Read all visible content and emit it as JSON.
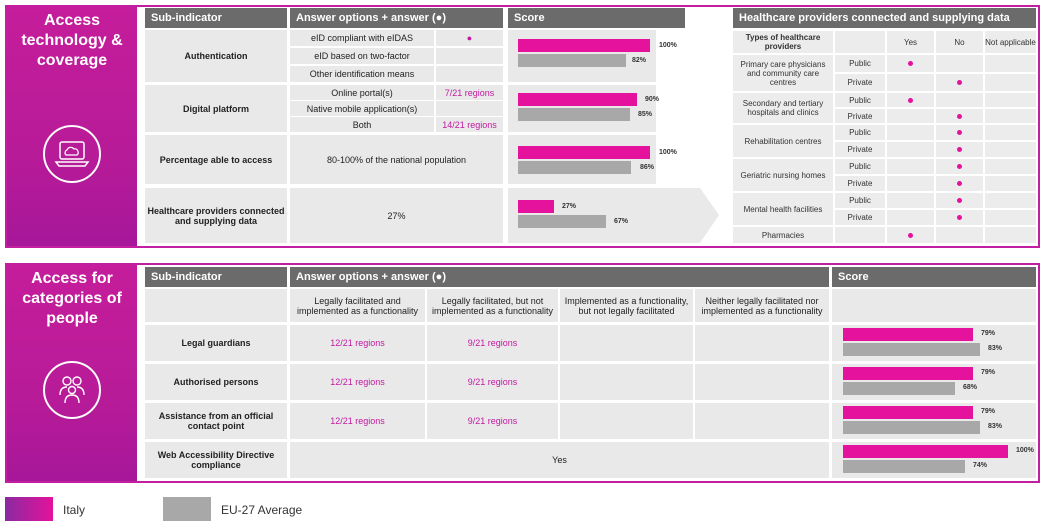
{
  "top": {
    "side_title": "Access technology & coverage",
    "icon": "cloud-laptop-icon",
    "headers": {
      "sub_indicator": "Sub-indicator",
      "answer": "Answer options + answer (●)",
      "score": "Score"
    },
    "rows": [
      {
        "label": "Authentication",
        "options": [
          "eID compliant with eIDAS",
          "eID based on two-factor",
          "Other identification means"
        ],
        "selected_mark": "●",
        "italy": "100%",
        "eu": "82%"
      },
      {
        "label": "Digital platform",
        "options": [
          "Online portal(s)",
          "Native mobile application(s)",
          "Both"
        ],
        "option_values": [
          "7/21 regions",
          "",
          "14/21 regions"
        ],
        "italy": "90%",
        "eu": "85%"
      },
      {
        "label": "Percentage able to access",
        "answer": "80-100% of the national population",
        "italy": "100%",
        "eu": "86%"
      },
      {
        "label": "Healthcare providers connected and supplying data",
        "answer": "27%",
        "italy": "27%",
        "eu": "67%"
      }
    ]
  },
  "providers": {
    "title": "Healthcare providers connected and supplying data",
    "col_type": "Types of healthcare providers",
    "col_yes": "Yes",
    "col_no": "No",
    "col_na": "Not applicable",
    "public": "Public",
    "private": "Private",
    "types": [
      "Primary care physicians and community care centres",
      "Secondary and tertiary hospitals and clinics",
      "Rehabilitation centres",
      "Geriatric nursing homes",
      "Mental health facilities",
      "Pharmacies"
    ],
    "answers": [
      "yes",
      "no",
      "yes",
      "no",
      "no",
      "no",
      "no",
      "no",
      "no",
      "no",
      "yes"
    ]
  },
  "bottom": {
    "side_title": "Access for categories of people",
    "icon": "people-group-icon",
    "headers": {
      "sub_indicator": "Sub-indicator",
      "answer": "Answer options + answer (●)",
      "score": "Score"
    },
    "columns": [
      "Legally facilitated and implemented as a functionality",
      "Legally facilitated, but not implemented as a functionality",
      "Implemented as a functionality, but not legally facilitated",
      "Neither legally facilitated nor implemented as a functionality"
    ],
    "rows": [
      {
        "label": "Legal guardians",
        "c1": "12/21 regions",
        "c2": "9/21 regions",
        "italy": "79%",
        "eu": "83%"
      },
      {
        "label": "Authorised persons",
        "c1": "12/21 regions",
        "c2": "9/21 regions",
        "italy": "79%",
        "eu": "68%"
      },
      {
        "label": "Assistance from an official contact point",
        "c1": "12/21 regions",
        "c2": "9/21 regions",
        "italy": "79%",
        "eu": "83%"
      },
      {
        "label": "Web Accessibility Directive compliance",
        "answer": "Yes",
        "italy": "100%",
        "eu": "74%"
      }
    ]
  },
  "legend": {
    "italy": "Italy",
    "eu": "EU-27 Average"
  },
  "colors": {
    "italy": "#e4129c",
    "eu": "#a8a8a8",
    "header": "#6b6b6b",
    "accent": "#c41ea0"
  }
}
